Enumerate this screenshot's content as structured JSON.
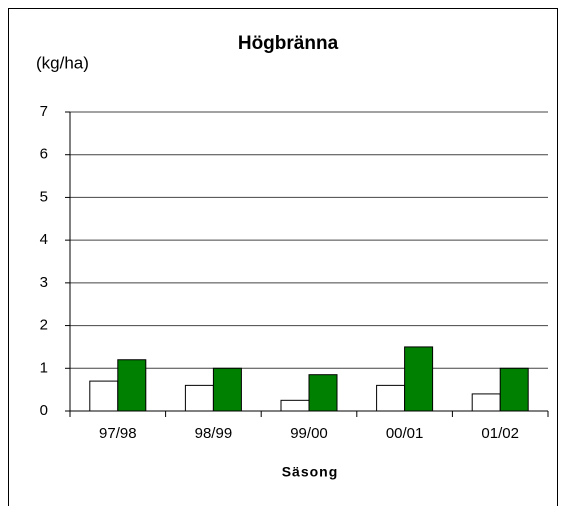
{
  "chart_data": {
    "type": "bar",
    "title": "Högbränna",
    "y_label": "(kg/ha)",
    "x_label": "Säsong",
    "categories": [
      "97/98",
      "98/99",
      "99/00",
      "00/01",
      "01/02"
    ],
    "series": [
      {
        "color": "#ffffff",
        "values": [
          0.7,
          0.6,
          0.25,
          0.6,
          0.4
        ]
      },
      {
        "color": "#008000",
        "values": [
          1.2,
          1.0,
          0.85,
          1.5,
          1.0
        ]
      }
    ],
    "ylim": [
      0,
      7
    ],
    "yticks": [
      0,
      1,
      2,
      3,
      4,
      5,
      6,
      7
    ],
    "grid": true
  }
}
